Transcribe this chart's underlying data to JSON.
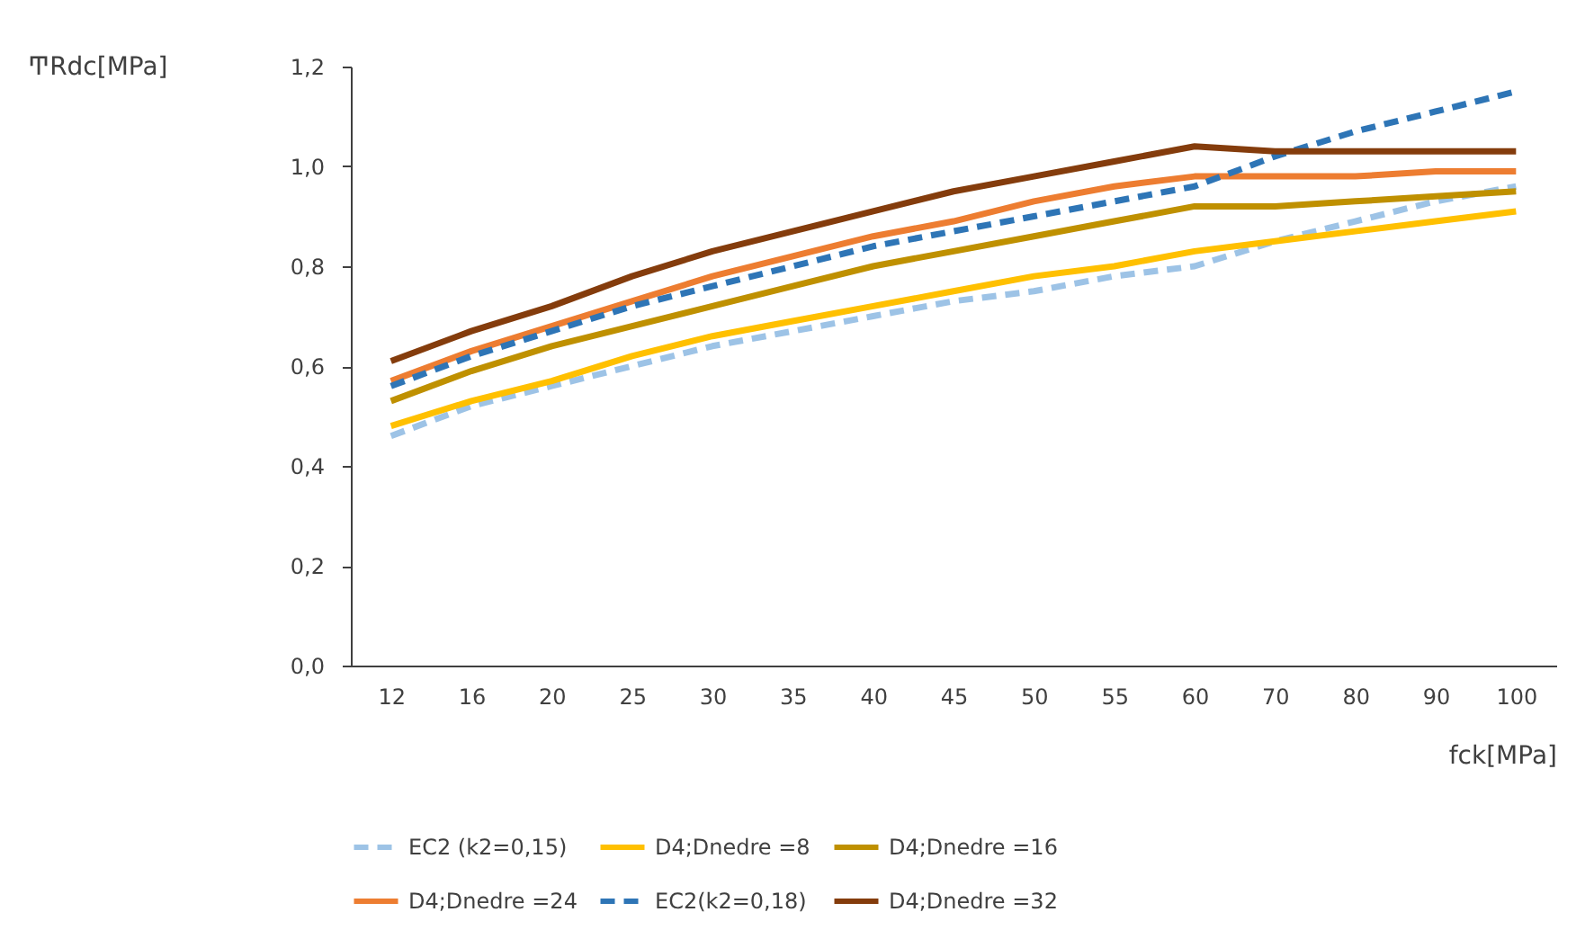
{
  "chart_data": {
    "type": "line",
    "xlabel": "fck[MPa]",
    "ylabel": "ͲRdc[MPa]",
    "categories": [
      "12",
      "16",
      "20",
      "25",
      "30",
      "35",
      "40",
      "45",
      "50",
      "55",
      "60",
      "70",
      "80",
      "90",
      "100"
    ],
    "ylim": [
      0,
      1.2
    ],
    "yticks": [
      {
        "value": 0,
        "label": "0,0"
      },
      {
        "value": 0.2,
        "label": "0,2"
      },
      {
        "value": 0.4,
        "label": "0,4"
      },
      {
        "value": 0.6,
        "label": "0,6"
      },
      {
        "value": 0.8,
        "label": "0,8"
      },
      {
        "value": 1.0,
        "label": "1,0"
      },
      {
        "value": 1.2,
        "label": "1,2"
      }
    ],
    "grid": false,
    "legend": "bottom",
    "marker": "none",
    "series": [
      {
        "name": "EC2 (k2=0,15)",
        "color": "#9dc3e6",
        "line_style": "dashed",
        "values": [
          0.46,
          0.52,
          0.56,
          0.6,
          0.64,
          0.67,
          0.7,
          0.73,
          0.75,
          0.78,
          0.8,
          0.85,
          0.89,
          0.93,
          0.96
        ]
      },
      {
        "name": "D4;Dnedre =8",
        "color": "#ffc000",
        "line_style": "solid",
        "values": [
          0.48,
          0.53,
          0.57,
          0.62,
          0.66,
          0.69,
          0.72,
          0.75,
          0.78,
          0.8,
          0.83,
          0.85,
          0.87,
          0.89,
          0.91
        ]
      },
      {
        "name": "D4;Dnedre =16",
        "color": "#bf9000",
        "line_style": "solid",
        "values": [
          0.53,
          0.59,
          0.64,
          0.68,
          0.72,
          0.76,
          0.8,
          0.83,
          0.86,
          0.89,
          0.92,
          0.92,
          0.93,
          0.94,
          0.95
        ]
      },
      {
        "name": "D4;Dnedre =24",
        "color": "#ed7d31",
        "line_style": "solid",
        "values": [
          0.57,
          0.63,
          0.68,
          0.73,
          0.78,
          0.82,
          0.86,
          0.89,
          0.93,
          0.96,
          0.98,
          0.98,
          0.98,
          0.99,
          0.99
        ]
      },
      {
        "name": "EC2(k2=0,18)",
        "color": "#2e75b6",
        "line_style": "dashed",
        "values": [
          0.56,
          0.62,
          0.67,
          0.72,
          0.76,
          0.8,
          0.84,
          0.87,
          0.9,
          0.93,
          0.96,
          1.02,
          1.07,
          1.11,
          1.15
        ]
      },
      {
        "name": "D4;Dnedre =32",
        "color": "#843c0c",
        "line_style": "solid",
        "values": [
          0.61,
          0.67,
          0.72,
          0.78,
          0.83,
          0.87,
          0.91,
          0.95,
          0.98,
          1.01,
          1.04,
          1.03,
          1.03,
          1.03,
          1.03
        ]
      }
    ]
  }
}
